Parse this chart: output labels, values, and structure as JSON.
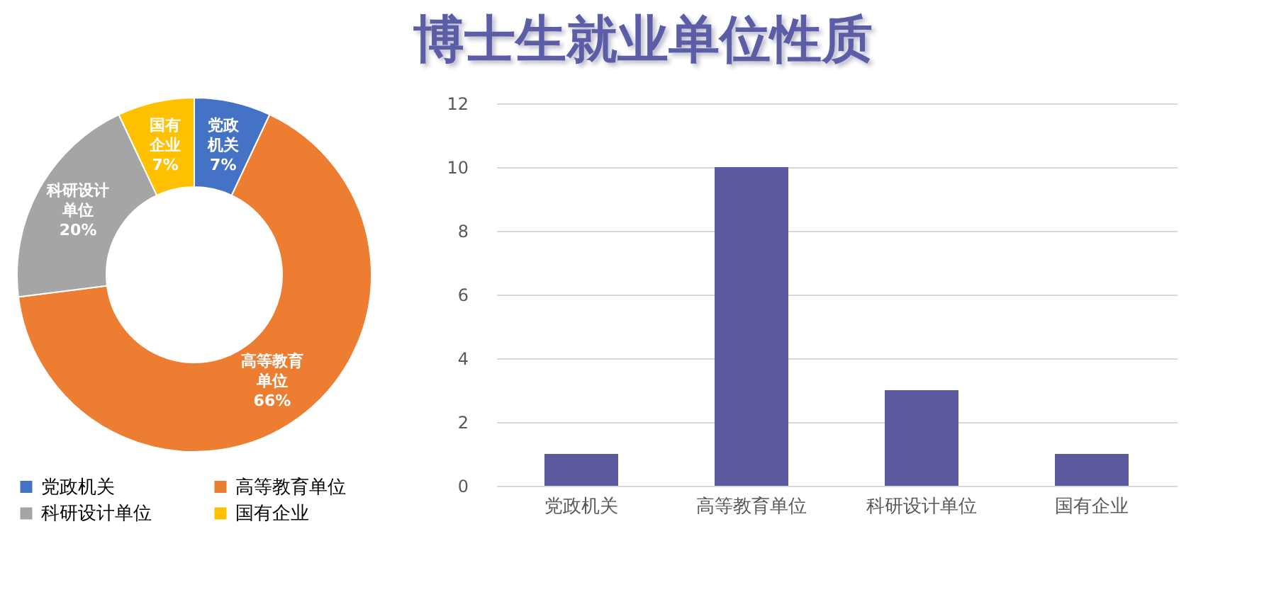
{
  "chart_data": [
    {
      "type": "donut",
      "categories": [
        "党政机关",
        "高等教育单位",
        "科研设计单位",
        "国有企业"
      ],
      "values": [
        7,
        66,
        20,
        7
      ],
      "colors": [
        "#4472c4",
        "#ed7d31",
        "#a5a5a5",
        "#ffc000"
      ],
      "value_labels": [
        "7%",
        "66%",
        "20%",
        "7%"
      ],
      "legend": "bottom"
    },
    {
      "type": "bar",
      "title": "博士生就业单位性质",
      "categories": [
        "党政机关",
        "高等教育单位",
        "科研设计单位",
        "国有企业"
      ],
      "values": [
        1,
        10,
        3,
        1
      ],
      "color": "#5b5a9f",
      "ylim": [
        0,
        12
      ],
      "yticks": [
        0,
        2,
        4,
        6,
        8,
        10,
        12
      ],
      "grid": "y"
    }
  ]
}
